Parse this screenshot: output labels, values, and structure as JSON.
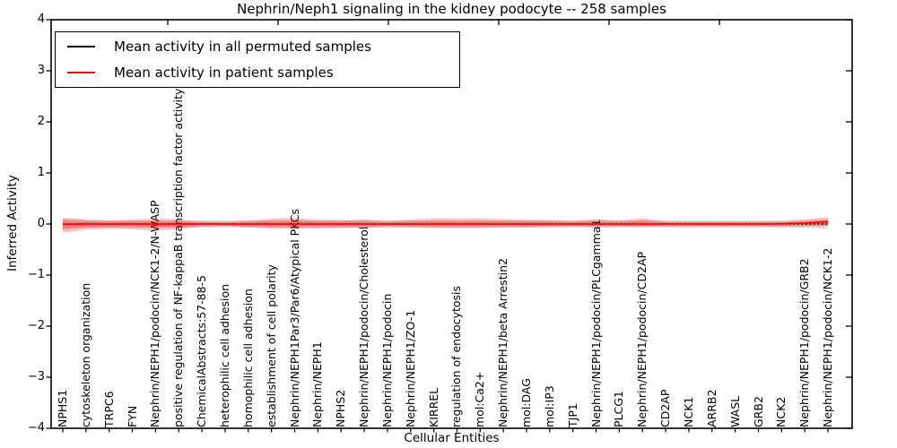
{
  "chart_data": {
    "type": "line",
    "title": "Nephrin/Neph1 signaling in the kidney podocyte -- 258 samples",
    "xlabel": "Cellular Entities",
    "ylabel": "Inferred Activity",
    "ylim": [
      -4,
      4
    ],
    "ytick_labels": [
      "4",
      "3",
      "2",
      "1",
      "0",
      "−1",
      "−2",
      "−3",
      "−4"
    ],
    "grid": false,
    "legend_position": "upper left",
    "legend": [
      {
        "label": "Mean activity in all permuted samples",
        "color": "#000000"
      },
      {
        "label": "Mean activity in patient samples",
        "color": "#ff0000"
      }
    ],
    "categories": [
      "NPHS1",
      "cytoskeleton organization",
      "TRPC6",
      "FYN",
      "Nephrin/NEPH1/podocin/NCK1-2/N-WASP",
      "positive regulation of NF-kappaB transcription factor activity",
      "ChemicalAbstracts:57-88-5",
      "heterophilic cell adhesion",
      "homophilic cell adhesion",
      "establishment of cell polarity",
      "Nephrin/NEPH1Par3/Par6/Atypical PKCs",
      "Nephrin/NEPH1",
      "NPHS2",
      "Nephrin/NEPH1/podocin/Cholesterol",
      "Nephrin/NEPH1/podocin",
      "Nephrin/NEPH1/ZO-1",
      "KIRREL",
      "regulation of endocytosis",
      "mol:Ca2+",
      "Nephrin/NEPH1/beta Arrestin2",
      "mol:DAG",
      "mol:IP3",
      "TJP1",
      "Nephrin/NEPH1/podocin/PLCgamma1",
      "PLCG1",
      "Nephrin/NEPH1/podocin/CD2AP",
      "CD2AP",
      "NCK1",
      "ARRB2",
      "WASL",
      "GRB2",
      "NCK2",
      "Nephrin/NEPH1/podocin/GRB2",
      "Nephrin/NEPH1/podocin/NCK1-2"
    ],
    "series": [
      {
        "name": "Mean activity in all permuted samples",
        "color": "#000000",
        "linestyle": "dotted",
        "values": [
          0,
          0,
          0,
          0,
          0,
          0,
          0,
          0,
          0,
          0,
          0,
          0,
          0,
          0,
          0,
          0,
          0,
          0,
          0,
          0,
          0,
          0,
          0,
          0,
          0,
          0,
          0,
          0,
          0,
          0,
          0,
          0,
          0,
          0
        ]
      },
      {
        "name": "Mean activity in patient samples",
        "color": "#ff0000",
        "linestyle": "solid",
        "values": [
          -0.005,
          0,
          0,
          0,
          0,
          0,
          0,
          0,
          0,
          0,
          0,
          0,
          0,
          0,
          0,
          0,
          0,
          0,
          0,
          0,
          0,
          0,
          0,
          0,
          0,
          0,
          0,
          0,
          0,
          0,
          0,
          0.005,
          0.018,
          0.045
        ]
      }
    ],
    "bands": [
      {
        "name": "permuted-samples-range",
        "color": "#000000",
        "opacity": 0.12,
        "upper": [
          0.11,
          0.075,
          0.07,
          0.07,
          0.07,
          0.07,
          0.07,
          0.07,
          0.07,
          0.07,
          0.07,
          0.07,
          0.07,
          0.07,
          0.07,
          0.07,
          0.07,
          0.07,
          0.07,
          0.07,
          0.07,
          0.07,
          0.07,
          0.07,
          0.07,
          0.07,
          0.07,
          0.07,
          0.07,
          0.07,
          0.07,
          0.07,
          0.08,
          0.09
        ],
        "lower": [
          -0.11,
          -0.075,
          -0.07,
          -0.07,
          -0.07,
          -0.07,
          -0.07,
          -0.07,
          -0.07,
          -0.07,
          -0.07,
          -0.07,
          -0.07,
          -0.07,
          -0.07,
          -0.07,
          -0.07,
          -0.07,
          -0.07,
          -0.07,
          -0.07,
          -0.07,
          -0.07,
          -0.07,
          -0.07,
          -0.07,
          -0.07,
          -0.07,
          -0.07,
          -0.07,
          -0.07,
          -0.07,
          -0.08,
          -0.09
        ]
      },
      {
        "name": "patient-samples-outer-band",
        "color": "#ff0000",
        "opacity": 0.25,
        "upper": [
          0.12,
          0.09,
          0.07,
          0.09,
          0.105,
          0.09,
          0.053,
          0.044,
          0.07,
          0.105,
          0.114,
          0.088,
          0.079,
          0.096,
          0.06,
          0.088,
          0.105,
          0.105,
          0.105,
          0.096,
          0.088,
          0.079,
          0.06,
          0.096,
          0.07,
          0.114,
          0.053,
          0.05,
          0.05,
          0.05,
          0.05,
          0.053,
          0.088,
          0.132
        ],
        "lower": [
          -0.17,
          -0.11,
          -0.09,
          -0.105,
          -0.123,
          -0.105,
          -0.053,
          -0.044,
          -0.07,
          -0.088,
          -0.096,
          -0.088,
          -0.079,
          -0.079,
          -0.06,
          -0.07,
          -0.079,
          -0.079,
          -0.079,
          -0.07,
          -0.07,
          -0.06,
          -0.053,
          -0.06,
          -0.053,
          -0.06,
          -0.053,
          -0.05,
          -0.05,
          -0.05,
          -0.05,
          -0.053,
          -0.053,
          -0.044
        ]
      },
      {
        "name": "patient-samples-inner-band",
        "color": "#ff0000",
        "opacity": 0.25,
        "upper": [
          0.066,
          0.05,
          0.039,
          0.05,
          0.058,
          0.05,
          0.029,
          0.024,
          0.039,
          0.058,
          0.063,
          0.048,
          0.043,
          0.053,
          0.033,
          0.048,
          0.058,
          0.058,
          0.058,
          0.053,
          0.048,
          0.043,
          0.033,
          0.053,
          0.039,
          0.063,
          0.029,
          0.028,
          0.028,
          0.028,
          0.028,
          0.029,
          0.048,
          0.073
        ],
        "lower": [
          -0.094,
          -0.061,
          -0.05,
          -0.058,
          -0.068,
          -0.058,
          -0.029,
          -0.024,
          -0.039,
          -0.048,
          -0.053,
          -0.048,
          -0.043,
          -0.043,
          -0.033,
          -0.039,
          -0.043,
          -0.043,
          -0.043,
          -0.039,
          -0.039,
          -0.033,
          -0.029,
          -0.033,
          -0.029,
          -0.033,
          -0.029,
          -0.028,
          -0.028,
          -0.028,
          -0.028,
          -0.029,
          -0.029,
          -0.024
        ]
      }
    ]
  }
}
